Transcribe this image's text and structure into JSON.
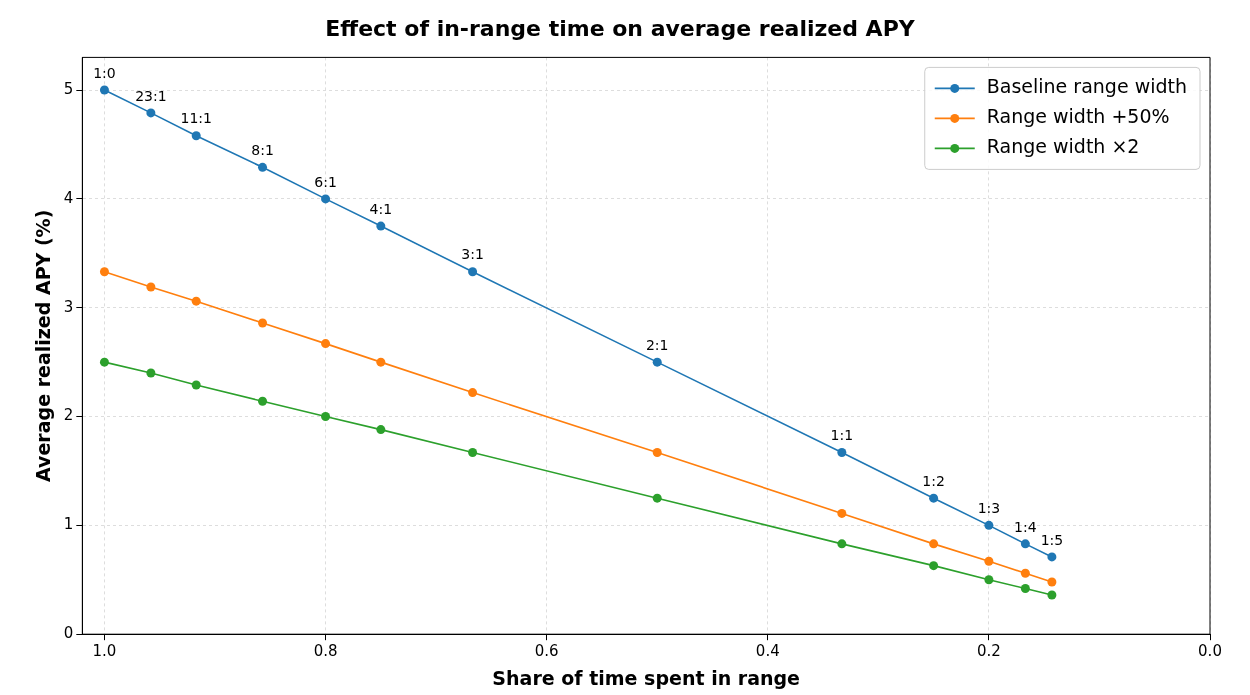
{
  "chart_data": {
    "type": "line",
    "title": "Effect of in-range time on average realized APY",
    "xlabel": "Share of time spent in range",
    "ylabel": "Average realized APY (%)",
    "x": [
      1.0,
      0.958,
      0.917,
      0.857,
      0.8,
      0.75,
      0.667,
      0.5,
      0.333,
      0.25,
      0.2,
      0.167,
      0.143
    ],
    "series": [
      {
        "name": "Baseline range width",
        "color": "#1f77b4",
        "values": [
          5.0,
          4.79,
          4.58,
          4.29,
          4.0,
          3.75,
          3.33,
          2.5,
          1.67,
          1.25,
          1.0,
          0.83,
          0.71
        ]
      },
      {
        "name": "Range width +50%",
        "color": "#ff7f0e",
        "values": [
          3.33,
          3.19,
          3.06,
          2.86,
          2.67,
          2.5,
          2.22,
          1.67,
          1.11,
          0.83,
          0.67,
          0.56,
          0.48
        ]
      },
      {
        "name": "Range width ×2",
        "color": "#2ca02c",
        "values": [
          2.5,
          2.4,
          2.29,
          2.14,
          2.0,
          1.88,
          1.67,
          1.25,
          0.83,
          0.63,
          0.5,
          0.42,
          0.36
        ]
      }
    ],
    "xlim": [
      1.02,
      0
    ],
    "ylim": [
      0,
      5.3
    ],
    "xticks": [
      {
        "value": 1.0,
        "label": "1.0"
      },
      {
        "value": 0.8,
        "label": "0.8"
      },
      {
        "value": 0.6,
        "label": "0.6"
      },
      {
        "value": 0.4,
        "label": "0.4"
      },
      {
        "value": 0.2,
        "label": "0.2"
      },
      {
        "value": 0,
        "label": "0.0"
      }
    ],
    "yticks": [
      0,
      1,
      2,
      3,
      4,
      5
    ],
    "annotations": [
      {
        "text": "1:0",
        "x": 1.0,
        "y": 5.0
      },
      {
        "text": "23:1",
        "x": 0.958,
        "y": 4.79
      },
      {
        "text": "11:1",
        "x": 0.917,
        "y": 4.58
      },
      {
        "text": "8:1",
        "x": 0.857,
        "y": 4.29
      },
      {
        "text": "6:1",
        "x": 0.8,
        "y": 4.0
      },
      {
        "text": "4:1",
        "x": 0.75,
        "y": 3.75
      },
      {
        "text": "3:1",
        "x": 0.667,
        "y": 3.33
      },
      {
        "text": "2:1",
        "x": 0.5,
        "y": 2.5
      },
      {
        "text": "1:1",
        "x": 0.333,
        "y": 1.67
      },
      {
        "text": "1:2",
        "x": 0.25,
        "y": 1.25
      },
      {
        "text": "1:3",
        "x": 0.2,
        "y": 1.0
      },
      {
        "text": "1:4",
        "x": 0.167,
        "y": 0.83
      },
      {
        "text": "1:5",
        "x": 0.143,
        "y": 0.71
      }
    ],
    "grid": true,
    "legend": "top right",
    "marker": "circle",
    "line_style": "solid"
  }
}
